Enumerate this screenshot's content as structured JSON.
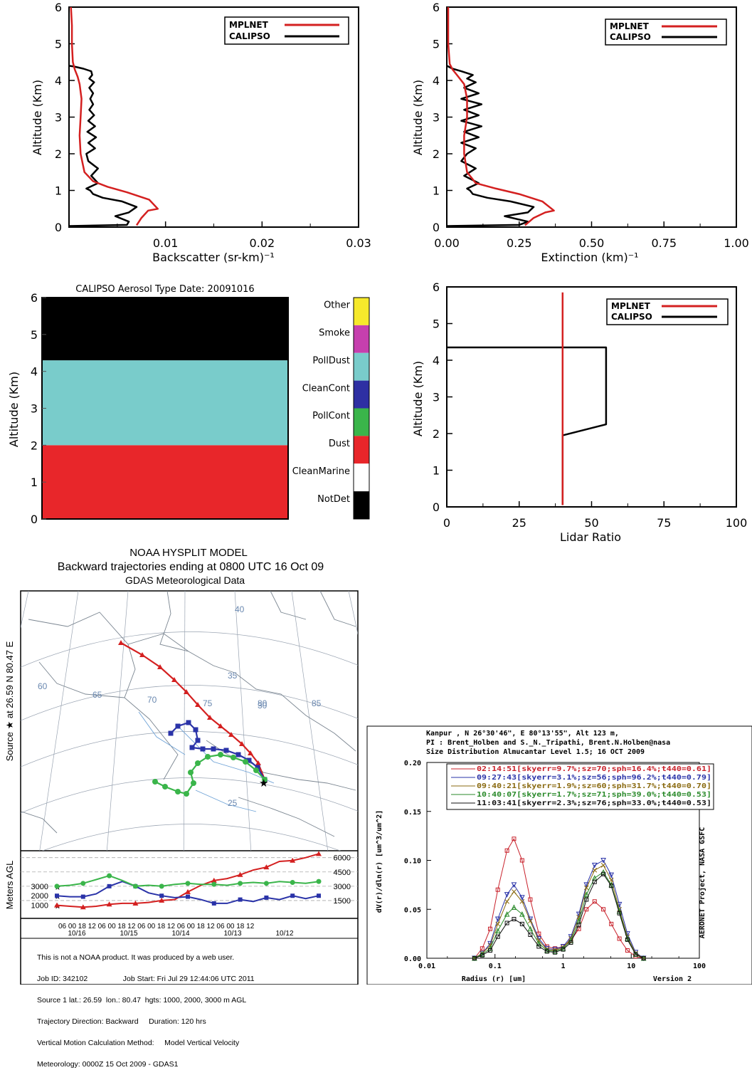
{
  "panel_backscatter": {
    "legend": [
      "MPLNET",
      "CALIPSO"
    ],
    "x_ticks": [
      "0.01",
      "0.02",
      "0.03"
    ],
    "y_ticks": [
      "0",
      "1",
      "2",
      "3",
      "4",
      "5",
      "6"
    ],
    "xlabel": "Backscatter (sr-km)⁻¹",
    "ylabel": "Altitude (Km)"
  },
  "panel_extinction": {
    "legend": [
      "MPLNET",
      "CALIPSO"
    ],
    "x_ticks": [
      "0.00",
      "0.25",
      "0.50",
      "0.75",
      "1.00"
    ],
    "y_ticks": [
      "0",
      "1",
      "2",
      "3",
      "4",
      "5",
      "6"
    ],
    "xlabel": "Extinction (km)⁻¹",
    "ylabel": "Altitude (Km)"
  },
  "panel_aerosol_type": {
    "title": "CALIPSO Aerosol Type Date: 20091016",
    "ylabel": "Altitude (Km)",
    "y_ticks": [
      "0",
      "1",
      "2",
      "3",
      "4",
      "5",
      "6"
    ],
    "legend": [
      "Other",
      "Smoke",
      "PollDust",
      "CleanCont",
      "PollCont",
      "Dust",
      "CleanMarine",
      "NotDet"
    ]
  },
  "panel_lidar": {
    "legend": [
      "MPLNET",
      "CALIPSO"
    ],
    "x_ticks": [
      "0",
      "25",
      "50",
      "75",
      "100"
    ],
    "y_ticks": [
      "0",
      "1",
      "2",
      "3",
      "4",
      "5",
      "6"
    ],
    "xlabel": "Lidar Ratio",
    "ylabel": "Altitude (Km)"
  },
  "hysplit": {
    "title1": "NOAA HYSPLIT MODEL",
    "title2": "Backward trajectories ending at 0800 UTC 16 Oct 09",
    "title3": "GDAS Meteorological Data",
    "side_label": "Source ★ at  26.59 N  80.47 E",
    "map_labels": [
      "40",
      "35",
      "30",
      "25",
      "60",
      "65",
      "70",
      "75",
      "80",
      "85"
    ],
    "agl_label": "Meters AGL",
    "right_ticks": [
      "6000",
      "4500",
      "3000",
      "1500"
    ],
    "left_ticks": [
      "3000",
      "2000",
      "1000"
    ],
    "hour_ticks": "06 00 18 12 06 00 18 12 06 00 18 12 06 00 18 12 06 00 18 12",
    "date_ticks": [
      "10/16",
      "10/15",
      "10/14",
      "10/13",
      "10/12"
    ],
    "notes": [
      "This is not a NOAA product. It was produced by a web user.",
      "Job ID: 342102                 Job Start: Fri Jul 29 12:44:06 UTC 2011",
      "Source 1 lat.: 26.59  lon.: 80.47  hgts: 1000, 2000, 3000 m AGL",
      "Trajectory Direction: Backward     Duration: 120 hrs",
      "Vertical Motion Calculation Method:     Model Vertical Velocity",
      "Meteorology: 0000Z 15 Oct 2009 - GDAS1"
    ]
  },
  "aeronet": {
    "header": [
      "Kanpur  , N 26°30'46\", E 80°13'55\", Alt 123 m,",
      "PI : Brent_Holben and S._N._Tripathi, Brent.N.Holben@nasa",
      "Size Distribution Almucantar Level 1.5; 16 OCT 2009"
    ],
    "legend": [
      "02:14:51[skyerr=9.7%;sz=70;sph=16.4%;t440=0.61]",
      "09:27:43[skyerr=3.1%;sz=56;sph=96.2%;t440=0.79]",
      "09:40:21[skyerr=1.9%;sz=60;sph=31.7%;t440=0.70]",
      "10:40:07[skyerr=1.7%;sz=71;sph=39.0%;t440=0.53]",
      "11:03:41[skyerr=2.3%;sz=76;sph=33.0%;t440=0.53]"
    ],
    "y_ticks": [
      "0.00",
      "0.05",
      "0.10",
      "0.15",
      "0.20"
    ],
    "x_ticks": [
      "0.01",
      "0.1",
      "1",
      "10",
      "100"
    ],
    "xlabel": "Radius (r) [um]",
    "ylabel": "dV(r)/dln(r) [um^3/um^2]",
    "side_label": "AERONET Project, NASA GSFC",
    "version": "Version 2"
  },
  "chart_data": [
    {
      "type": "line",
      "xlabel": "Backscatter (sr-km)⁻¹",
      "ylabel": "Altitude (Km)",
      "xlim": [
        0,
        0.03
      ],
      "ylim": [
        0,
        6
      ],
      "series": [
        {
          "name": "MPLNET",
          "color": "#d42020",
          "x": [
            0.007,
            0.0075,
            0.0082,
            0.0092,
            0.0083,
            0.006,
            0.004,
            0.0025,
            0.0016,
            0.0012,
            0.0011,
            0.0012,
            0.0013,
            0.0011,
            0.0009,
            0.0006,
            0.0004,
            0.0003,
            0.0003,
            0.0002
          ],
          "y": [
            0.05,
            0.25,
            0.45,
            0.5,
            0.75,
            0.95,
            1.1,
            1.25,
            1.5,
            2.0,
            2.5,
            3.0,
            3.5,
            3.9,
            4.1,
            4.3,
            4.5,
            5.0,
            5.5,
            6.0
          ]
        },
        {
          "name": "CALIPSO",
          "color": "#000000",
          "x": [
            0.0,
            0.006,
            0.0062,
            0.0048,
            0.0062,
            0.007,
            0.0055,
            0.0035,
            0.0025,
            0.0022,
            0.0018,
            0.003,
            0.0023,
            0.003,
            0.002,
            0.0018,
            0.0027,
            0.002,
            0.0028,
            0.0019,
            0.0027,
            0.002,
            0.0026,
            0.0021,
            0.0025,
            0.0022,
            0.0025,
            0.0021,
            0.0026,
            0.0021,
            0.0024,
            0.0023,
            0.0015,
            0.0005,
            0.0
          ],
          "y": [
            0.03,
            0.06,
            0.15,
            0.3,
            0.4,
            0.55,
            0.7,
            0.8,
            0.9,
            1.0,
            1.05,
            1.2,
            1.4,
            1.6,
            1.8,
            2.0,
            2.15,
            2.3,
            2.45,
            2.6,
            2.75,
            2.9,
            3.05,
            3.2,
            3.35,
            3.5,
            3.65,
            3.8,
            3.95,
            4.05,
            4.15,
            4.25,
            4.32,
            4.38,
            4.4
          ]
        }
      ]
    },
    {
      "type": "line",
      "xlabel": "Extinction (km)⁻¹",
      "ylabel": "Altitude (Km)",
      "xlim": [
        0,
        1
      ],
      "ylim": [
        0,
        6
      ],
      "series": [
        {
          "name": "MPLNET",
          "color": "#d42020",
          "x": [
            0.27,
            0.3,
            0.34,
            0.37,
            0.33,
            0.25,
            0.17,
            0.1,
            0.07,
            0.06,
            0.06,
            0.07,
            0.07,
            0.06,
            0.04,
            0.02,
            0.01,
            0.005,
            0.005,
            0.005
          ],
          "y": [
            0.05,
            0.25,
            0.4,
            0.45,
            0.7,
            0.9,
            1.05,
            1.2,
            1.5,
            2.0,
            2.5,
            3.0,
            3.5,
            3.9,
            4.1,
            4.3,
            4.45,
            5.0,
            5.5,
            6.0
          ]
        },
        {
          "name": "CALIPSO",
          "color": "#000000",
          "x": [
            0.0,
            0.25,
            0.28,
            0.2,
            0.28,
            0.3,
            0.22,
            0.14,
            0.09,
            0.08,
            0.07,
            0.11,
            0.06,
            0.1,
            0.05,
            0.07,
            0.1,
            0.05,
            0.11,
            0.06,
            0.12,
            0.05,
            0.11,
            0.06,
            0.12,
            0.05,
            0.11,
            0.06,
            0.1,
            0.07,
            0.09,
            0.05,
            0.02,
            0.0
          ],
          "y": [
            0.03,
            0.06,
            0.15,
            0.3,
            0.4,
            0.55,
            0.7,
            0.8,
            0.9,
            1.0,
            1.05,
            1.2,
            1.4,
            1.6,
            1.8,
            2.0,
            2.15,
            2.3,
            2.45,
            2.6,
            2.75,
            2.9,
            3.05,
            3.2,
            3.35,
            3.5,
            3.65,
            3.8,
            3.95,
            4.05,
            4.15,
            4.25,
            4.32,
            4.4
          ]
        }
      ]
    },
    {
      "type": "heatmap",
      "title": "CALIPSO Aerosol Type Date: 20091016",
      "ylabel": "Altitude (Km)",
      "ylim": [
        0,
        6
      ],
      "layers": [
        {
          "type": "Dust",
          "from": 0.0,
          "to": 2.0,
          "color": "#e8262a"
        },
        {
          "type": "PollDust",
          "from": 2.0,
          "to": 4.3,
          "color": "#79cccb"
        },
        {
          "type": "NotDet",
          "from": 4.3,
          "to": 6.0,
          "color": "#000000"
        }
      ],
      "legend_colors": [
        "#f6e92b",
        "#c63fae",
        "#79cccb",
        "#2e2fa3",
        "#3ab54a",
        "#e8262a",
        "#ffffff",
        "#000000"
      ]
    },
    {
      "type": "line",
      "xlabel": "Lidar Ratio",
      "ylabel": "Altitude (Km)",
      "xlim": [
        0,
        100
      ],
      "ylim": [
        0,
        6
      ],
      "series": [
        {
          "name": "MPLNET",
          "color": "#d42020",
          "x": [
            40,
            40
          ],
          "y": [
            0.05,
            5.85
          ]
        },
        {
          "name": "CALIPSO",
          "color": "#000000",
          "x": [
            40,
            40,
            40,
            55,
            55,
            0
          ],
          "y": [
            0.05,
            1.9,
            1.95,
            2.25,
            4.35,
            4.35
          ]
        }
      ]
    },
    {
      "type": "line",
      "title": "Meters AGL",
      "x_range_hours": [
        0,
        120
      ],
      "ylim": [
        0,
        6500
      ],
      "series": [
        {
          "color": "#d42020",
          "hours": [
            0,
            6,
            12,
            18,
            24,
            30,
            36,
            42,
            48,
            54,
            60,
            66,
            72,
            78,
            84,
            90,
            96,
            102,
            108,
            114,
            120
          ],
          "values": [
            1000,
            900,
            800,
            900,
            1100,
            1200,
            1200,
            1300,
            1500,
            1600,
            2400,
            3100,
            3600,
            3800,
            4200,
            4700,
            5000,
            5600,
            5700,
            6000,
            6400
          ]
        },
        {
          "color": "#2a33a8",
          "hours": [
            0,
            6,
            12,
            18,
            24,
            30,
            36,
            42,
            48,
            54,
            60,
            66,
            72,
            78,
            84,
            90,
            96,
            102,
            108,
            114,
            120
          ],
          "values": [
            2000,
            1900,
            1900,
            2200,
            3000,
            3500,
            3000,
            2300,
            2000,
            1800,
            1900,
            1600,
            1200,
            1200,
            1600,
            1400,
            1800,
            1600,
            2000,
            1700,
            2000
          ]
        },
        {
          "color": "#3ab54a",
          "hours": [
            0,
            6,
            12,
            18,
            24,
            30,
            36,
            42,
            48,
            54,
            60,
            66,
            72,
            78,
            84,
            90,
            96,
            102,
            108,
            114,
            120
          ],
          "values": [
            3000,
            3100,
            3300,
            3700,
            4100,
            3600,
            3000,
            3100,
            3000,
            3200,
            3300,
            3200,
            3200,
            3100,
            3300,
            3400,
            3300,
            3500,
            3400,
            3300,
            3500
          ]
        }
      ]
    },
    {
      "type": "line",
      "xlabel": "Radius (r) [um]",
      "ylabel": "dV(r)/dln(r) [um^3/um^2]",
      "xlim": [
        0.01,
        100
      ],
      "ylim": [
        0,
        0.2
      ],
      "x_scale": "log",
      "x": [
        0.05,
        0.065,
        0.085,
        0.11,
        0.15,
        0.19,
        0.25,
        0.33,
        0.44,
        0.58,
        0.76,
        1.0,
        1.3,
        1.7,
        2.2,
        2.9,
        3.9,
        5.1,
        6.7,
        8.8,
        11.6,
        15.2
      ],
      "series": [
        {
          "name": "02:14:51[skyerr=9.7%;sz=70;sph=16.4%;t440=0.61]",
          "color": "#c8202a",
          "values": [
            0.0,
            0.01,
            0.03,
            0.07,
            0.11,
            0.122,
            0.1,
            0.06,
            0.025,
            0.012,
            0.01,
            0.012,
            0.018,
            0.03,
            0.05,
            0.058,
            0.05,
            0.035,
            0.02,
            0.008,
            0.002,
            0.0
          ]
        },
        {
          "name": "09:27:43[skyerr=3.1%;sz=56;sph=96.2%;t440=0.79]",
          "color": "#2a33a8",
          "values": [
            0.0,
            0.005,
            0.015,
            0.04,
            0.065,
            0.075,
            0.062,
            0.04,
            0.02,
            0.01,
            0.009,
            0.012,
            0.022,
            0.045,
            0.075,
            0.095,
            0.1,
            0.085,
            0.055,
            0.025,
            0.006,
            0.0
          ]
        },
        {
          "name": "09:40:21[skyerr=1.9%;sz=60;sph=31.7%;t440=0.70]",
          "color": "#8a6a10",
          "values": [
            0.0,
            0.005,
            0.013,
            0.035,
            0.058,
            0.068,
            0.058,
            0.038,
            0.018,
            0.009,
            0.008,
            0.011,
            0.02,
            0.042,
            0.072,
            0.09,
            0.095,
            0.08,
            0.05,
            0.022,
            0.005,
            0.0
          ]
        },
        {
          "name": "10:40:07[skyerr=1.7%;sz=71;sph=39.0%;t440=0.53]",
          "color": "#2a8a2a",
          "values": [
            0.0,
            0.004,
            0.01,
            0.028,
            0.045,
            0.052,
            0.045,
            0.03,
            0.015,
            0.008,
            0.007,
            0.01,
            0.018,
            0.038,
            0.065,
            0.082,
            0.088,
            0.075,
            0.048,
            0.02,
            0.004,
            0.0
          ]
        },
        {
          "name": "11:03:41[skyerr=2.3%;sz=76;sph=33.0%;t440=0.53]",
          "color": "#111111",
          "values": [
            0.0,
            0.003,
            0.008,
            0.022,
            0.036,
            0.04,
            0.035,
            0.024,
            0.012,
            0.007,
            0.006,
            0.009,
            0.016,
            0.034,
            0.06,
            0.078,
            0.086,
            0.074,
            0.046,
            0.019,
            0.004,
            0.0
          ]
        }
      ]
    }
  ]
}
